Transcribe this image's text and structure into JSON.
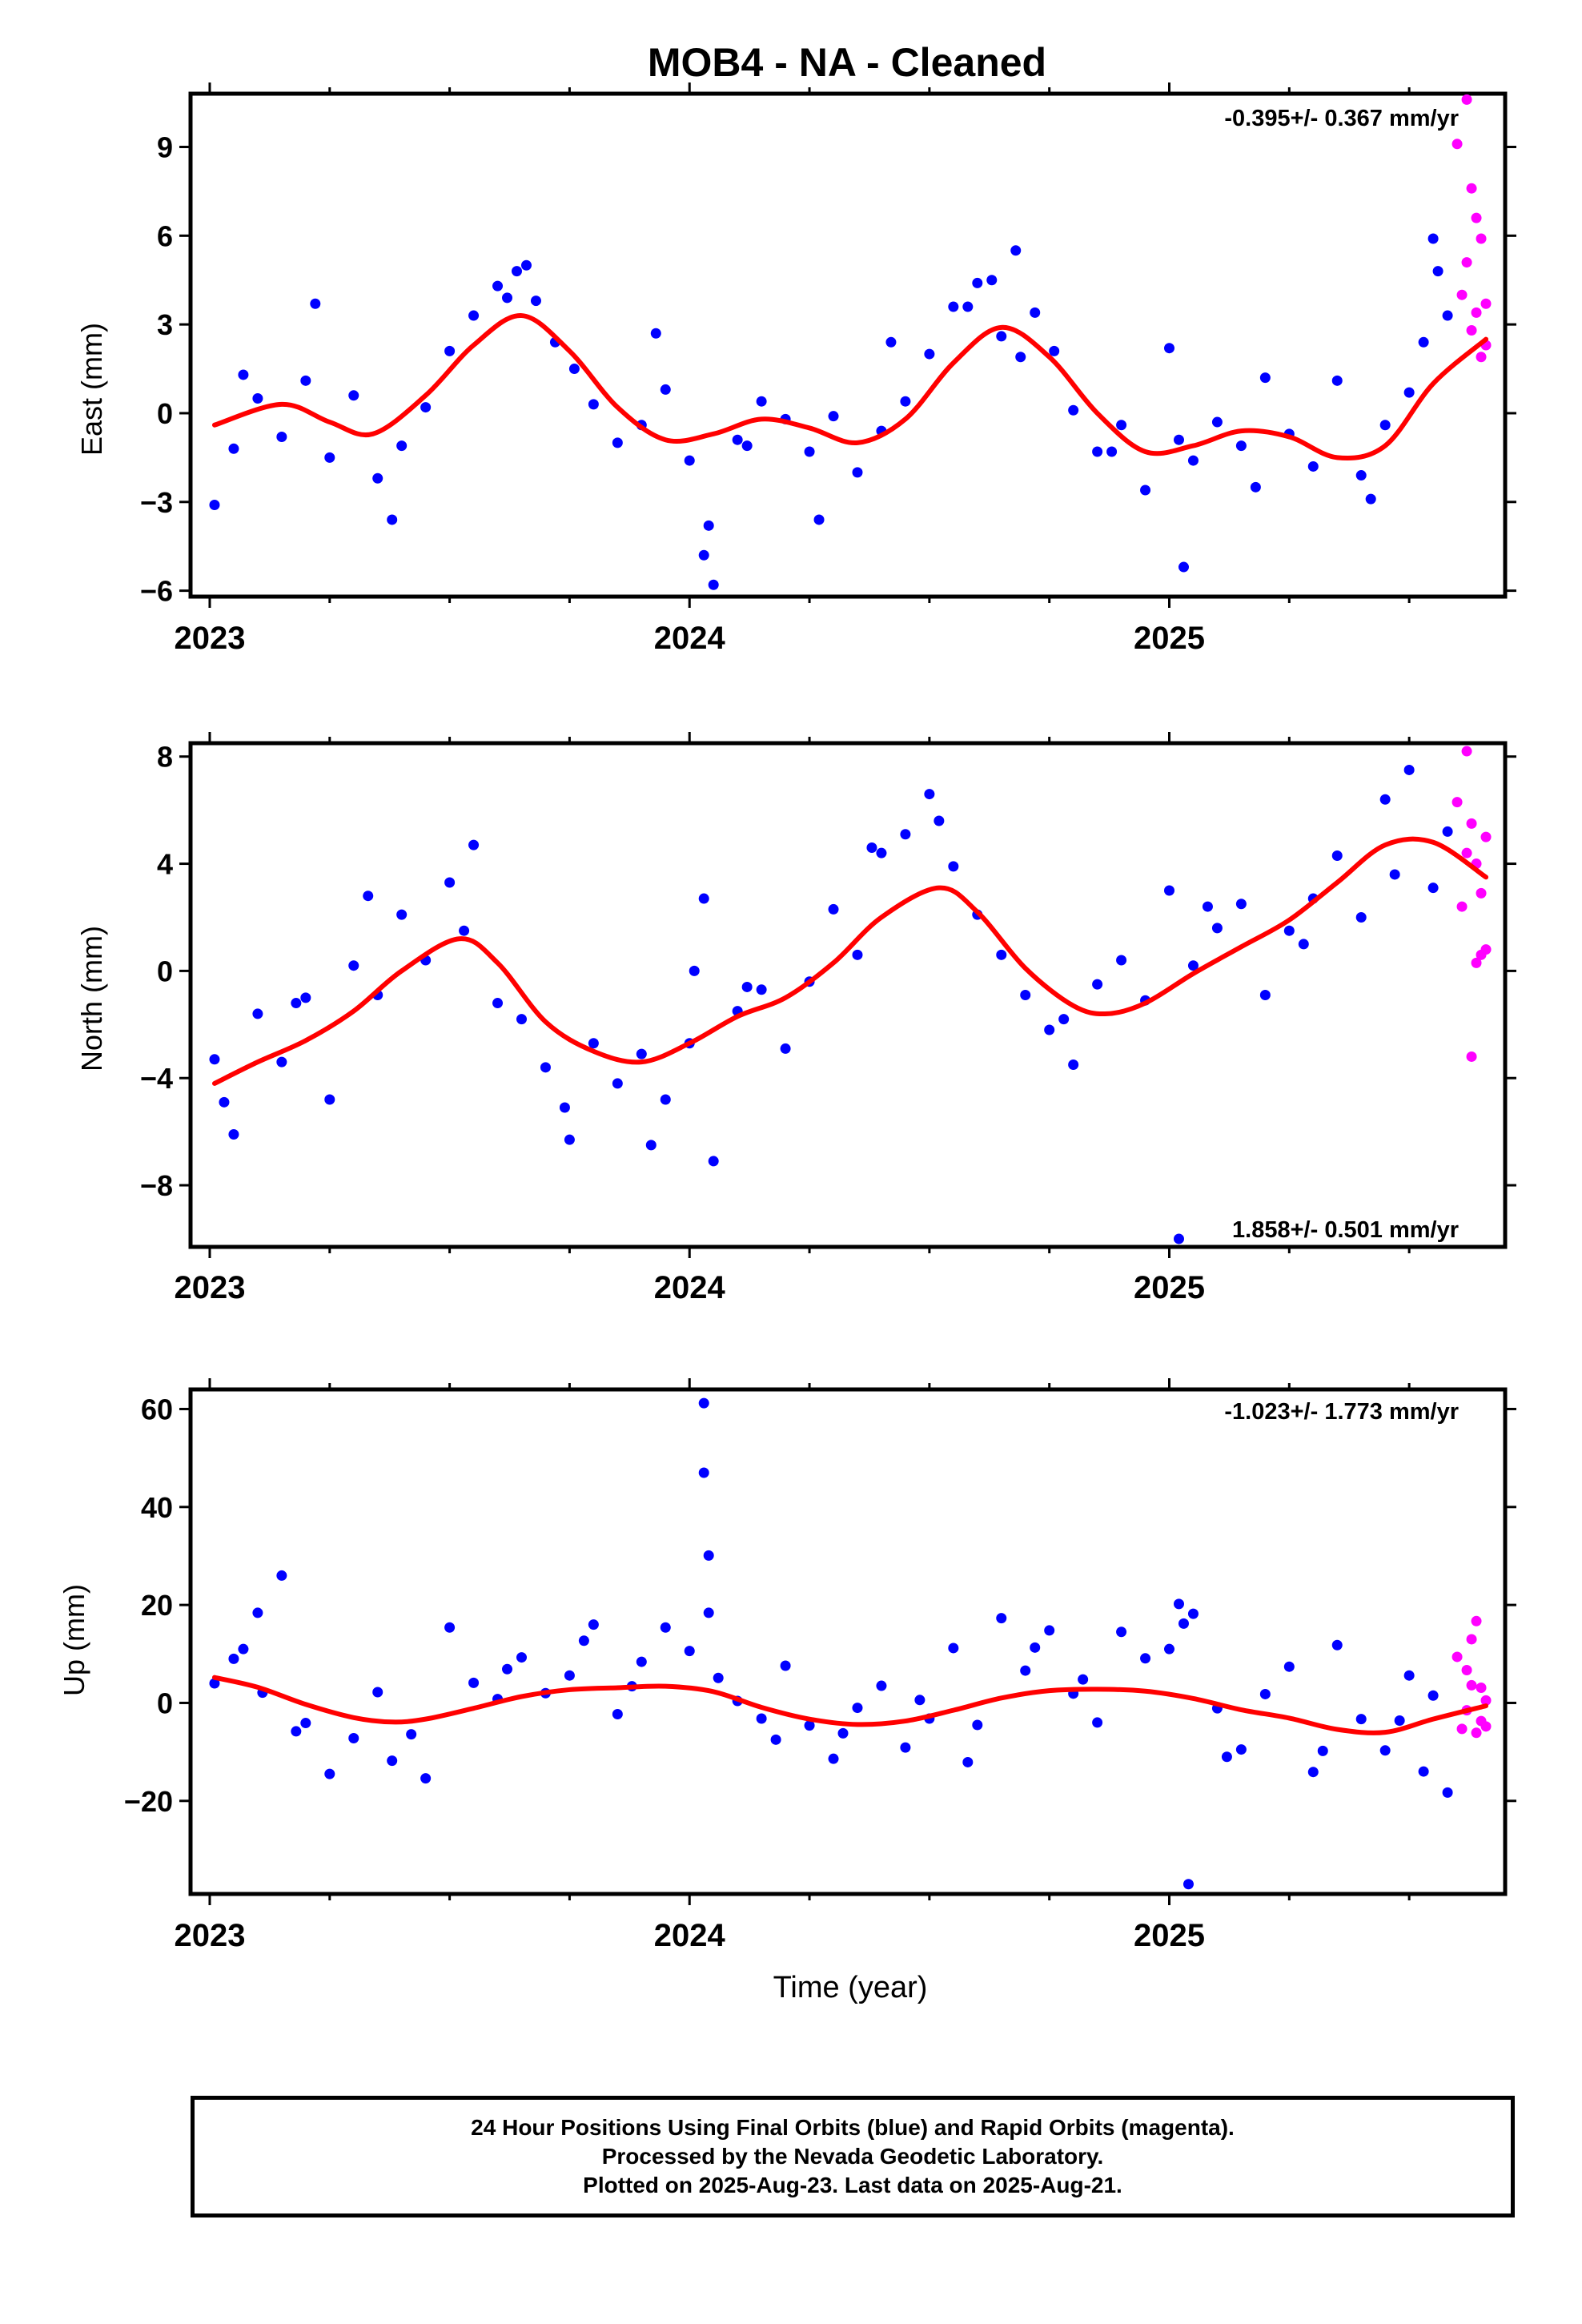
{
  "title": "MOB4  - NA - Cleaned",
  "xlabel": "Time (year)",
  "colors": {
    "final": "#0000ff",
    "rapid": "#ff00ff",
    "model": "#ff0000",
    "axis": "#000000"
  },
  "footer": {
    "line1": "24 Hour Positions Using Final Orbits (blue) and Rapid Orbits (magenta).",
    "line2": "Processed by the Nevada Geodetic Laboratory.",
    "line3": "Plotted on 2025-Aug-23. Last data on 2025-Aug-21."
  },
  "chart_data": [
    {
      "type": "scatter",
      "component": "East",
      "ylabel": "East (mm)",
      "rate": "-0.395+/- 0.367 mm/yr",
      "xlim": [
        2022.96,
        2025.7
      ],
      "ylim": [
        -6.2,
        10.8
      ],
      "xticks": [
        2023,
        2024,
        2025
      ],
      "yticks": [
        -6,
        -3,
        0,
        3,
        6,
        9
      ],
      "series": [
        {
          "name": "Final Orbits (blue)",
          "x": [
            2023.01,
            2023.05,
            2023.1,
            2023.15,
            2023.2,
            2023.25,
            2023.3,
            2023.35,
            2023.4,
            2023.45,
            2023.5,
            2023.55,
            2023.6,
            2023.64,
            2023.68,
            2023.72,
            2023.76,
            2023.8,
            2023.85,
            2023.9,
            2023.95,
            2024.0,
            2024.03,
            2024.05,
            2024.1,
            2024.15,
            2024.2,
            2024.25,
            2024.3,
            2024.35,
            2024.4,
            2024.45,
            2024.5,
            2024.55,
            2024.6,
            2024.65,
            2024.68,
            2024.72,
            2024.76,
            2024.8,
            2024.85,
            2024.9,
            2024.95,
            2025.0,
            2025.03,
            2025.05,
            2025.1,
            2025.15,
            2025.2,
            2025.25,
            2025.3,
            2025.35,
            2025.4,
            2025.45,
            2025.5,
            2025.53,
            2025.56,
            2025.58,
            2023.07,
            2023.22,
            2023.38,
            2023.62,
            2023.66,
            2023.93,
            2024.04,
            2024.12,
            2024.27,
            2024.42,
            2024.58,
            2024.63,
            2024.69,
            2024.88,
            2025.02,
            2025.18,
            2025.42,
            2025.55
          ],
          "y": [
            -3.1,
            -1.2,
            0.5,
            -0.8,
            1.1,
            -1.5,
            0.6,
            -2.2,
            -1.1,
            0.2,
            2.1,
            3.3,
            4.3,
            4.8,
            3.8,
            2.4,
            1.5,
            0.3,
            -1.0,
            -0.4,
            0.8,
            -1.6,
            -4.8,
            -5.8,
            -0.9,
            0.4,
            -0.2,
            -1.3,
            -0.1,
            -2.0,
            -0.6,
            0.4,
            2.0,
            3.6,
            4.4,
            2.6,
            5.5,
            3.4,
            2.1,
            0.1,
            -1.3,
            -0.4,
            -2.6,
            2.2,
            -5.2,
            -1.6,
            -0.3,
            -1.1,
            1.2,
            -0.7,
            -1.8,
            1.1,
            -2.1,
            -0.4,
            0.7,
            2.4,
            4.8,
            3.3,
            1.3,
            3.7,
            -3.6,
            3.9,
            5.0,
            2.7,
            -3.8,
            -1.1,
            -3.6,
            2.4,
            3.6,
            4.5,
            1.9,
            -1.3,
            -0.9,
            -2.5,
            -2.9,
            5.9
          ]
        },
        {
          "name": "Rapid Orbits (magenta)",
          "x": [
            2025.6,
            2025.61,
            2025.62,
            2025.62,
            2025.63,
            2025.63,
            2025.64,
            2025.64,
            2025.65,
            2025.65,
            2025.66,
            2025.66
          ],
          "y": [
            9.1,
            4.0,
            10.6,
            5.1,
            7.6,
            2.8,
            6.6,
            3.4,
            5.9,
            1.9,
            3.7,
            2.3
          ]
        }
      ],
      "model": {
        "x": [
          2023.01,
          2023.15,
          2023.25,
          2023.34,
          2023.45,
          2023.55,
          2023.65,
          2023.75,
          2023.85,
          2023.95,
          2024.05,
          2024.15,
          2024.25,
          2024.35,
          2024.45,
          2024.55,
          2024.65,
          2024.75,
          2024.85,
          2024.95,
          2025.05,
          2025.15,
          2025.25,
          2025.35,
          2025.45,
          2025.55,
          2025.66
        ],
        "y": [
          -0.4,
          0.3,
          -0.3,
          -0.7,
          0.6,
          2.3,
          3.3,
          2.1,
          0.2,
          -0.9,
          -0.7,
          -0.2,
          -0.5,
          -1.0,
          -0.2,
          1.7,
          2.9,
          1.9,
          0.0,
          -1.3,
          -1.1,
          -0.6,
          -0.8,
          -1.5,
          -1.1,
          1.0,
          2.5
        ]
      }
    },
    {
      "type": "scatter",
      "component": "North",
      "ylabel": "North (mm)",
      "rate": "1.858+/- 0.501 mm/yr",
      "xlim": [
        2022.96,
        2025.7
      ],
      "ylim": [
        -10.3,
        8.5
      ],
      "xticks": [
        2023,
        2024,
        2025
      ],
      "yticks": [
        -8,
        -4,
        0,
        4,
        8
      ],
      "series": [
        {
          "name": "Final Orbits (blue)",
          "x": [
            2023.01,
            2023.05,
            2023.1,
            2023.15,
            2023.2,
            2023.25,
            2023.3,
            2023.35,
            2023.4,
            2023.45,
            2023.5,
            2023.55,
            2023.6,
            2023.65,
            2023.7,
            2023.75,
            2023.8,
            2023.85,
            2023.9,
            2023.95,
            2024.0,
            2024.03,
            2024.05,
            2024.1,
            2024.15,
            2024.2,
            2024.25,
            2024.3,
            2024.35,
            2024.4,
            2024.45,
            2024.5,
            2024.55,
            2024.6,
            2024.65,
            2024.7,
            2024.75,
            2024.8,
            2024.85,
            2024.9,
            2024.95,
            2025.0,
            2025.02,
            2025.05,
            2025.1,
            2025.15,
            2025.2,
            2025.25,
            2025.3,
            2025.35,
            2025.4,
            2025.45,
            2025.5,
            2025.55,
            2025.58,
            2023.03,
            2023.18,
            2023.33,
            2023.53,
            2023.74,
            2023.92,
            2024.01,
            2024.12,
            2024.38,
            2024.52,
            2024.78,
            2025.08,
            2025.28,
            2025.47
          ],
          "y": [
            -3.3,
            -6.1,
            -1.6,
            -3.4,
            -1.0,
            -4.8,
            0.2,
            -0.9,
            2.1,
            0.4,
            3.3,
            4.7,
            -1.2,
            -1.8,
            -3.6,
            -6.3,
            -2.7,
            -4.2,
            -3.1,
            -4.8,
            -2.7,
            2.7,
            -7.1,
            -1.5,
            -0.7,
            -2.9,
            -0.4,
            2.3,
            0.6,
            4.4,
            5.1,
            6.6,
            3.9,
            2.1,
            0.6,
            -0.9,
            -2.2,
            -3.5,
            -0.5,
            0.4,
            -1.1,
            3.0,
            -10.0,
            0.2,
            1.6,
            2.5,
            -0.9,
            1.5,
            2.7,
            4.3,
            2.0,
            6.4,
            7.5,
            3.1,
            5.2,
            -4.9,
            -1.2,
            2.8,
            1.5,
            -5.1,
            -6.5,
            0.0,
            -0.6,
            4.6,
            5.6,
            -1.8,
            2.4,
            1.0,
            3.6
          ]
        },
        {
          "name": "Rapid Orbits (magenta)",
          "x": [
            2025.6,
            2025.61,
            2025.62,
            2025.62,
            2025.63,
            2025.63,
            2025.64,
            2025.64,
            2025.65,
            2025.65,
            2025.66,
            2025.66
          ],
          "y": [
            6.3,
            2.4,
            8.2,
            4.4,
            -3.2,
            5.5,
            4.0,
            0.3,
            2.9,
            0.6,
            5.0,
            0.8
          ]
        }
      ],
      "model": {
        "x": [
          2023.01,
          2023.1,
          2023.2,
          2023.3,
          2023.4,
          2023.52,
          2023.6,
          2023.7,
          2023.8,
          2023.9,
          2024.0,
          2024.1,
          2024.2,
          2024.3,
          2024.4,
          2024.52,
          2024.6,
          2024.7,
          2024.8,
          2024.87,
          2024.95,
          2025.05,
          2025.15,
          2025.25,
          2025.35,
          2025.45,
          2025.55,
          2025.66
        ],
        "y": [
          -4.2,
          -3.4,
          -2.6,
          -1.5,
          0.0,
          1.2,
          0.3,
          -1.9,
          -3.0,
          -3.4,
          -2.7,
          -1.7,
          -1.0,
          0.3,
          2.0,
          3.1,
          2.2,
          0.1,
          -1.3,
          -1.6,
          -1.2,
          -0.1,
          0.9,
          1.9,
          3.3,
          4.7,
          4.8,
          3.5
        ]
      }
    },
    {
      "type": "scatter",
      "component": "Up",
      "ylabel": "Up (mm)",
      "rate": "-1.023+/- 1.773 mm/yr",
      "xlim": [
        2022.96,
        2025.7
      ],
      "ylim": [
        -39,
        64
      ],
      "xticks": [
        2023,
        2024,
        2025
      ],
      "yticks": [
        -20,
        0,
        20,
        40,
        60
      ],
      "series": [
        {
          "name": "Final Orbits (blue)",
          "x": [
            2023.01,
            2023.05,
            2023.1,
            2023.11,
            2023.15,
            2023.2,
            2023.25,
            2023.3,
            2023.35,
            2023.38,
            2023.45,
            2023.5,
            2023.55,
            2023.6,
            2023.65,
            2023.7,
            2023.75,
            2023.8,
            2023.85,
            2023.9,
            2023.95,
            2024.0,
            2024.03,
            2024.03,
            2024.04,
            2024.04,
            2024.06,
            2024.1,
            2024.15,
            2024.2,
            2024.25,
            2024.3,
            2024.35,
            2024.4,
            2024.45,
            2024.5,
            2024.55,
            2024.6,
            2024.65,
            2024.7,
            2024.75,
            2024.8,
            2024.85,
            2024.9,
            2024.95,
            2025.0,
            2025.02,
            2025.03,
            2025.04,
            2025.05,
            2025.1,
            2025.15,
            2025.2,
            2025.25,
            2025.3,
            2025.35,
            2025.4,
            2025.45,
            2025.5,
            2025.55,
            2025.58,
            2023.07,
            2023.18,
            2023.42,
            2023.62,
            2023.78,
            2023.88,
            2024.18,
            2024.32,
            2024.48,
            2024.58,
            2024.72,
            2024.82,
            2025.12,
            2025.32,
            2025.48,
            2025.53
          ],
          "y": [
            4.0,
            9.0,
            18.4,
            2.1,
            26.0,
            -4.1,
            -14.5,
            -7.2,
            2.2,
            -11.8,
            -15.4,
            15.4,
            4.1,
            0.8,
            9.3,
            2.0,
            5.6,
            16.0,
            -2.3,
            8.4,
            15.4,
            10.6,
            61.2,
            47.0,
            30.1,
            18.4,
            5.1,
            0.4,
            -3.2,
            7.6,
            -4.6,
            -11.4,
            -1.0,
            3.5,
            -9.1,
            -3.2,
            11.2,
            -4.5,
            17.3,
            6.6,
            14.8,
            1.9,
            -4.0,
            14.5,
            9.1,
            11.0,
            20.2,
            16.2,
            -37.0,
            18.2,
            -1.1,
            -9.5,
            1.8,
            7.4,
            -14.1,
            11.8,
            -3.3,
            -9.7,
            5.6,
            1.5,
            -18.3,
            11.0,
            -5.8,
            -6.4,
            6.9,
            12.7,
            3.4,
            -7.5,
            -6.2,
            0.6,
            -12.1,
            11.3,
            4.8,
            -11.0,
            -9.8,
            -3.6,
            -14.0
          ]
        },
        {
          "name": "Rapid Orbits (magenta)",
          "x": [
            2025.6,
            2025.61,
            2025.62,
            2025.62,
            2025.63,
            2025.63,
            2025.64,
            2025.64,
            2025.65,
            2025.65,
            2025.66,
            2025.66
          ],
          "y": [
            9.4,
            -5.3,
            6.7,
            -1.5,
            13.0,
            3.6,
            16.7,
            -6.1,
            3.1,
            -3.7,
            0.5,
            -4.8
          ]
        }
      ],
      "model": {
        "x": [
          2023.01,
          2023.1,
          2023.2,
          2023.3,
          2023.38,
          2023.45,
          2023.55,
          2023.65,
          2023.75,
          2023.85,
          2023.95,
          2024.05,
          2024.15,
          2024.25,
          2024.35,
          2024.45,
          2024.55,
          2024.65,
          2024.75,
          2024.85,
          2024.95,
          2025.05,
          2025.15,
          2025.25,
          2025.35,
          2025.45,
          2025.55,
          2025.66
        ],
        "y": [
          5.2,
          3.2,
          -0.3,
          -3.0,
          -3.9,
          -3.3,
          -1.1,
          1.3,
          2.7,
          3.1,
          3.4,
          2.3,
          -0.9,
          -3.3,
          -4.4,
          -3.7,
          -1.5,
          1.0,
          2.5,
          2.8,
          2.4,
          0.9,
          -1.4,
          -3.1,
          -5.4,
          -6.0,
          -3.3,
          -0.6
        ]
      }
    }
  ]
}
